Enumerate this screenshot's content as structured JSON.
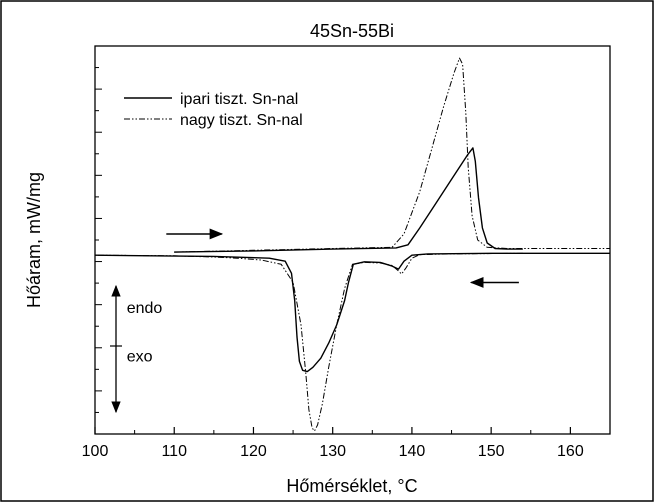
{
  "chart_data": {
    "type": "line",
    "title": "45Sn-55Bi",
    "xlabel": "Hőmérséklet, °C",
    "ylabel": "Hőáram, mW/mg",
    "xlim": [
      100,
      165
    ],
    "ylim": [
      -3.0,
      3.4
    ],
    "x_ticks": [
      100,
      110,
      120,
      130,
      140,
      150,
      160
    ],
    "grid": false,
    "legend_position": "top-left",
    "y_tick_labels_shown": false,
    "annotations": [
      {
        "text": "endo",
        "x": 104,
        "y": -1.0
      },
      {
        "text": "exo",
        "x": 104,
        "y": -1.8
      },
      {
        "kind": "arrow",
        "direction": "right",
        "x_from": 109,
        "x_to": 116,
        "y": 0.3
      },
      {
        "kind": "arrow",
        "direction": "left",
        "x_from": 153.5,
        "x_to": 147.5,
        "y": -0.5
      }
    ],
    "series": [
      {
        "name": "ipari tiszt. Sn-nal",
        "style": "solid",
        "segments": [
          {
            "direction": "heating",
            "x": [
              110,
              120,
              130,
              138,
              139.5,
              141,
              143,
              145,
              147,
              147.7,
              148.0,
              148.4,
              148.9,
              149.5,
              150.5,
              152,
              154
            ],
            "y": [
              0.0,
              0.02,
              0.05,
              0.07,
              0.12,
              0.4,
              0.8,
              1.2,
              1.6,
              1.72,
              1.5,
              0.9,
              0.4,
              0.15,
              0.06,
              0.05,
              0.05
            ]
          },
          {
            "direction": "cooling",
            "x": [
              165,
              150,
              142,
              140,
              139,
              138.3,
              137.5,
              136,
              134,
              132.6,
              132.0,
              131.5,
              130.5,
              129.5,
              128.5,
              127.5,
              126.8,
              126.2,
              125.8,
              125.5,
              125.2,
              124.8,
              124.0,
              122,
              115,
              100
            ],
            "y": [
              -0.02,
              -0.02,
              -0.03,
              -0.05,
              -0.15,
              -0.28,
              -0.23,
              -0.17,
              -0.16,
              -0.2,
              -0.5,
              -0.8,
              -1.2,
              -1.5,
              -1.75,
              -1.9,
              -1.97,
              -1.95,
              -1.8,
              -1.4,
              -0.8,
              -0.35,
              -0.15,
              -0.1,
              -0.07,
              -0.05
            ]
          }
        ]
      },
      {
        "name": "nagy tiszt. Sn-nal",
        "style": "dash-dot",
        "segments": [
          {
            "direction": "heating",
            "x": [
              110,
              120,
              130,
              137.5,
              139,
              141,
              142.5,
              144,
              145.3,
              146.0,
              146.4,
              146.8,
              147.1,
              147.6,
              148.3,
              149.5,
              152,
              165
            ],
            "y": [
              0.0,
              0.03,
              0.06,
              0.08,
              0.3,
              1.0,
              1.7,
              2.4,
              2.95,
              3.2,
              3.1,
              2.3,
              1.4,
              0.6,
              0.2,
              0.08,
              0.06,
              0.06
            ]
          },
          {
            "direction": "cooling",
            "x": [
              154,
              145,
              141,
              140,
              139.3,
              138.7,
              138.2,
              137.5,
              136,
              134,
              132.5,
              131.5,
              130.5,
              129.5,
              128.7,
              128.1,
              127.7,
              127.4,
              127.0,
              126.6,
              126.0,
              125.0,
              123.5,
              121,
              118,
              115,
              110,
              100
            ],
            "y": [
              -0.02,
              -0.03,
              -0.04,
              -0.1,
              -0.25,
              -0.36,
              -0.3,
              -0.22,
              -0.18,
              -0.17,
              -0.2,
              -0.6,
              -1.2,
              -1.9,
              -2.5,
              -2.85,
              -2.95,
              -2.9,
              -2.6,
              -2.0,
              -1.2,
              -0.5,
              -0.2,
              -0.13,
              -0.1,
              -0.08,
              -0.06,
              -0.05
            ]
          }
        ]
      }
    ]
  }
}
